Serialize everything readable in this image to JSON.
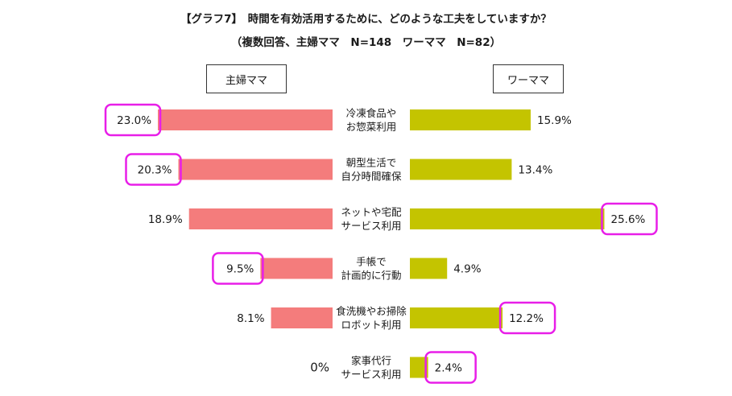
{
  "header": {
    "title": "【グラフ7】　時間を有効活用するために、どのような工夫をしていますか？",
    "subtitle": "（複数回答、主婦ママ　N=148　ワーママ　N=82）"
  },
  "chart_data": {
    "type": "bar",
    "orientation": "horizontal-butterfly",
    "categories": [
      [
        "冷凍食品や",
        "お惣菜利用"
      ],
      [
        "朝型生活で",
        "自分時間確保"
      ],
      [
        "ネットや宅配",
        "サービス利用"
      ],
      [
        "手帳で",
        "計画的に行動"
      ],
      [
        "食洗機やお掃除",
        "ロボット利用"
      ],
      [
        "家事代行",
        "サービス利用"
      ]
    ],
    "series": [
      {
        "name": "主婦ママ",
        "side": "left",
        "color": "#f47c7c",
        "values": [
          23.0,
          20.3,
          18.9,
          9.5,
          8.1,
          0
        ],
        "labels": [
          "23.0%",
          "20.3%",
          "18.9%",
          "9.5%",
          "8.1%",
          "0%"
        ],
        "highlighted": [
          true,
          true,
          false,
          true,
          false,
          false
        ]
      },
      {
        "name": "ワーママ",
        "side": "right",
        "color": "#c4c400",
        "values": [
          15.9,
          13.4,
          25.6,
          4.9,
          12.2,
          2.4
        ],
        "labels": [
          "15.9%",
          "13.4%",
          "25.6%",
          "4.9%",
          "12.2%",
          "2.4%"
        ],
        "highlighted": [
          false,
          false,
          true,
          false,
          true,
          true
        ]
      }
    ],
    "highlight_color": "#e81ee8",
    "xlim": [
      0,
      30
    ]
  }
}
